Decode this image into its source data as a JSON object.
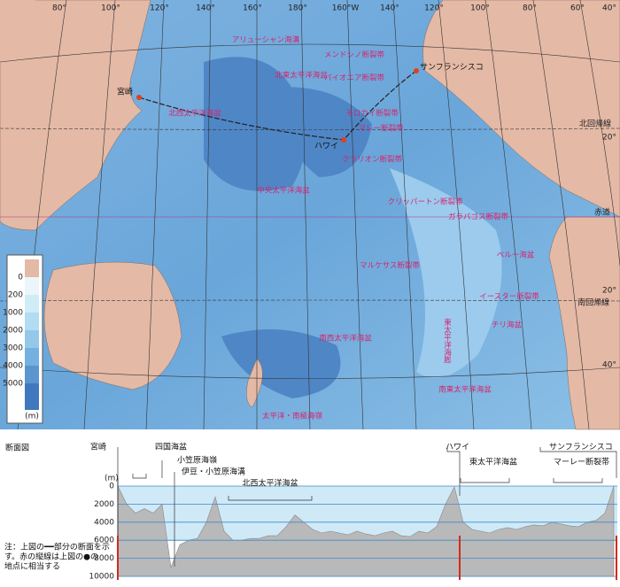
{
  "map": {
    "longitudes": [
      "80°",
      "100°",
      "120°",
      "140°",
      "160°",
      "180°",
      "160°W",
      "140°",
      "120°",
      "100°",
      "80°",
      "60°",
      "40°"
    ],
    "latitudes": [
      "北回帰線",
      "20°",
      "赤道",
      "20°",
      "南回帰線",
      "40°"
    ],
    "places": [
      "宮崎",
      "ハワイ",
      "サンフランシスコ"
    ],
    "features": [
      "アリューシャン海溝",
      "北東太平洋海盆",
      "メンドシノ断裂帯",
      "パイオニア断裂帯",
      "北西太平洋海盆",
      "マレー断裂帯",
      "モロカイ断裂帯",
      "中央太平洋海盆",
      "クラリオン断裂帯",
      "クリッパートン断裂帯",
      "ガラパゴス断裂帯",
      "マルケサス断裂帯",
      "ペルー海盆",
      "チリ海盆",
      "南西太平洋海盆",
      "南東太平洋海盆",
      "東太平洋海膨",
      "イースター断裂帯",
      "太平洋・南極海嶺"
    ],
    "legend": {
      "ticks": [
        "0",
        "200",
        "1000",
        "2000",
        "3000",
        "4000",
        "5000"
      ],
      "unit": "(m)"
    }
  },
  "profile": {
    "title": "断面図",
    "unit": "(m)",
    "ylim": [
      0,
      10000
    ],
    "yticks": [
      0,
      2000,
      4000,
      6000,
      8000,
      10000
    ],
    "depths": [
      0,
      2000,
      3000,
      2500,
      3000,
      2000,
      9000,
      6500,
      6000,
      5800,
      4000,
      1200,
      5000,
      6000,
      6000,
      5800,
      5800,
      5500,
      5500,
      4500,
      3200,
      4000,
      4800,
      5200,
      5000,
      5200,
      5400,
      5000,
      5300,
      5500,
      5200,
      5000,
      5500,
      5600,
      5000,
      5200,
      4500,
      2000,
      100,
      4000,
      4800,
      5000,
      5200,
      4800,
      4600,
      4800,
      4500,
      4300,
      4400,
      4000,
      4200,
      4400,
      4500,
      4000,
      3800,
      3000,
      0
    ],
    "labels": [
      "宮崎",
      "四国海盆",
      "小笠原海嶺",
      "伊豆・小笠原海溝",
      "北西太平洋海盆",
      "ハワイ",
      "東太平洋海盆",
      "サンフランシスコ",
      "マーレー断裂帯"
    ],
    "note": [
      "注：上図の━━部分の断面を示",
      "す。赤の縦線は上図の●の",
      "地点に相当する"
    ]
  }
}
